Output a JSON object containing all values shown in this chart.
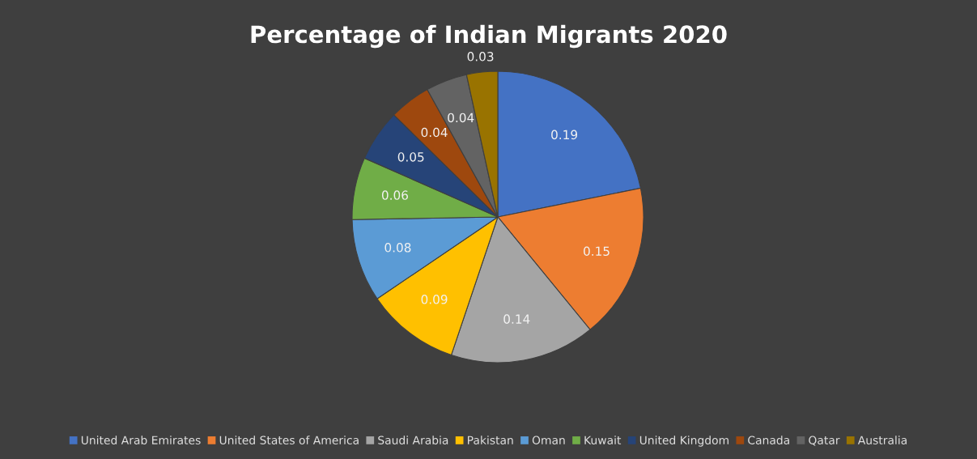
{
  "chart_data": {
    "type": "pie",
    "title": "Percentage of Indian Migrants 2020",
    "categories": [
      "United Arab Emirates",
      "United States of America",
      "Saudi Arabia",
      "Pakistan",
      "Oman",
      "Kuwait",
      "United Kingdom",
      "Canada",
      "Qatar",
      "Australia"
    ],
    "values": [
      0.19,
      0.15,
      0.14,
      0.09,
      0.08,
      0.06,
      0.05,
      0.04,
      0.04,
      0.03
    ],
    "colors": [
      "#4472c4",
      "#ed7d31",
      "#a5a5a5",
      "#ffc000",
      "#5b9bd5",
      "#70ad47",
      "#264478",
      "#9e480e",
      "#636363",
      "#997300"
    ],
    "data_labels": true,
    "legend": "bottom"
  }
}
